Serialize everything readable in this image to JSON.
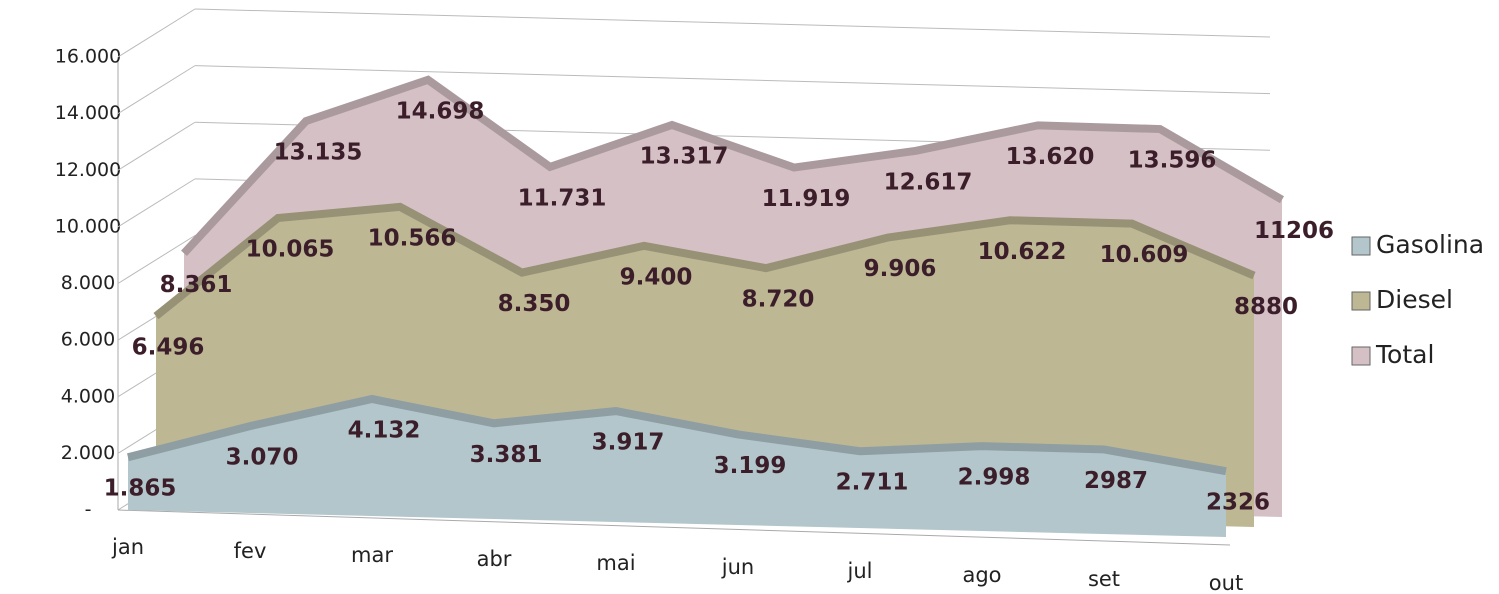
{
  "chart_data": {
    "type": "area",
    "categories": [
      "jan",
      "fev",
      "mar",
      "abr",
      "mai",
      "jun",
      "jul",
      "ago",
      "set",
      "out"
    ],
    "series": [
      {
        "name": "Gasolina",
        "color": "#b2c6cb",
        "values": [
          1865,
          3070,
          4132,
          3381,
          3917,
          3199,
          2711,
          2998,
          2987,
          2326
        ],
        "value_labels": [
          "1.865",
          "3.070",
          "4.132",
          "3.381",
          "3.917",
          "3.199",
          "2.711",
          "2.998",
          "2987",
          "2326"
        ]
      },
      {
        "name": "Diesel",
        "color": "#bdb794",
        "values": [
          6496,
          10065,
          10566,
          8350,
          9400,
          8720,
          9906,
          10622,
          10609,
          8880
        ],
        "value_labels": [
          "6.496",
          "10.065",
          "10.566",
          "8.350",
          "9.400",
          "8.720",
          "9.906",
          "10.622",
          "10.609",
          "8880"
        ]
      },
      {
        "name": "Total",
        "color": "#d5c1c5",
        "values": [
          8361,
          13135,
          14698,
          11731,
          13317,
          11919,
          12617,
          13620,
          13596,
          11206
        ],
        "value_labels": [
          "8.361",
          "13.135",
          "14.698",
          "11.731",
          "13.317",
          "11.919",
          "12.617",
          "13.620",
          "13.596",
          "11206"
        ]
      }
    ],
    "ylim": [
      0,
      16000
    ],
    "yticks": [
      {
        "value": 0,
        "label": "-"
      },
      {
        "value": 2000,
        "label": "2.000"
      },
      {
        "value": 4000,
        "label": "4.000"
      },
      {
        "value": 6000,
        "label": "6.000"
      },
      {
        "value": 8000,
        "label": "8.000"
      },
      {
        "value": 10000,
        "label": "10.000"
      },
      {
        "value": 12000,
        "label": "12.000"
      },
      {
        "value": 14000,
        "label": "14.000"
      },
      {
        "value": 16000,
        "label": "16.000"
      }
    ],
    "grid": true,
    "legend": "right"
  }
}
